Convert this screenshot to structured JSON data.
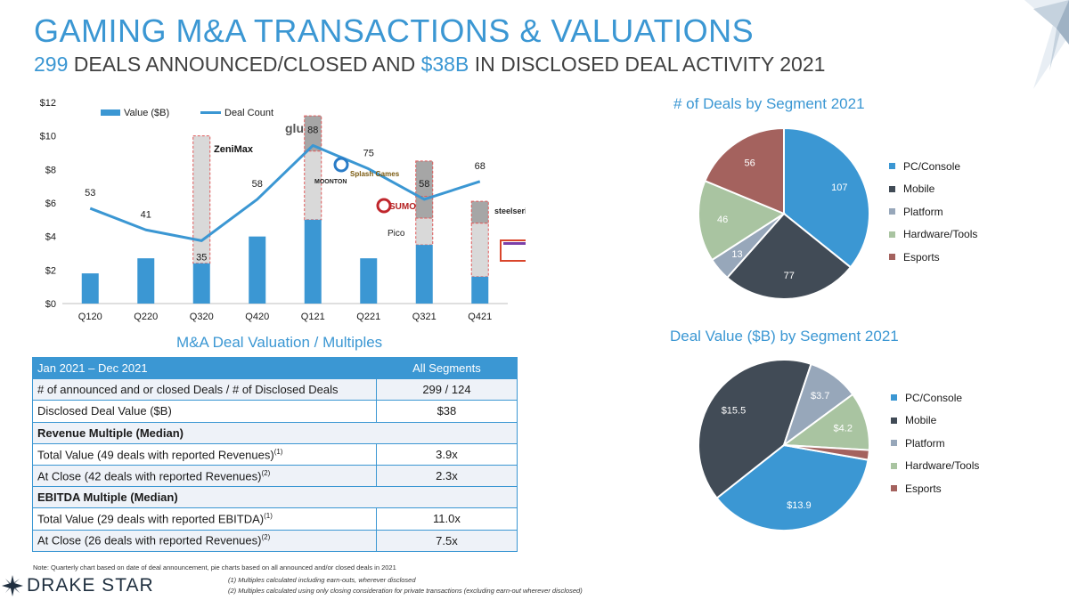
{
  "header": {
    "title": "GAMING M&A TRANSACTIONS & VALUATIONS",
    "subtitle_count": "299",
    "subtitle_mid": " DEALS ANNOUNCED/CLOSED AND ",
    "subtitle_value": "$38B",
    "subtitle_end": " IN DISCLOSED DEAL ACTIVITY 2021"
  },
  "colors": {
    "accent": "#3b97d3",
    "bar": "#3b97d3",
    "line": "#3b97d3",
    "highlight_box": "#d9d9d9",
    "highlight_box_dark": "#a6a6a6",
    "highlight_border": "#e05a5a",
    "pc_console": "#3b97d3",
    "mobile": "#414b56",
    "platform": "#97a7ba",
    "hardware_tools": "#a9c4a1",
    "esports": "#a4625e"
  },
  "chart_data": [
    {
      "type": "bar",
      "categories": [
        "Q120",
        "Q220",
        "Q320",
        "Q420",
        "Q121",
        "Q221",
        "Q321",
        "Q421"
      ],
      "ylim": [
        0,
        12
      ],
      "yticks": [
        "$0",
        "$2",
        "$4",
        "$6",
        "$8",
        "$10",
        "$12"
      ],
      "series": [
        {
          "name": "Value ($B)",
          "type": "bar",
          "values": [
            1.8,
            2.7,
            2.4,
            4.0,
            5.0,
            2.7,
            3.5,
            1.6
          ]
        },
        {
          "name": "Deal Count",
          "type": "line",
          "values": [
            53,
            41,
            35,
            58,
            88,
            75,
            58,
            68
          ],
          "ylim": [
            0,
            112
          ]
        }
      ],
      "highlighted_deals": [
        {
          "category": "Q320",
          "segments": [
            [
              2.4,
              10.0
            ]
          ]
        },
        {
          "category": "Q121",
          "segments": [
            [
              5.0,
              9.1
            ],
            [
              9.1,
              11.2
            ]
          ]
        },
        {
          "category": "Q321",
          "segments": [
            [
              3.5,
              5.1
            ],
            [
              5.1,
              6.4
            ],
            [
              6.4,
              8.5
            ]
          ]
        },
        {
          "category": "Q421",
          "segments": [
            [
              1.6,
              4.8
            ],
            [
              4.8,
              6.1
            ]
          ]
        }
      ],
      "logos": [
        "ZeniMax",
        "glu",
        "MOONTON",
        "Splash Games",
        "SUMO",
        "steelseries",
        "Pico"
      ]
    },
    {
      "type": "pie",
      "title": "# of Deals by Segment 2021",
      "labels": [
        "PC/Console",
        "Mobile",
        "Platform",
        "Hardware/Tools",
        "Esports"
      ],
      "values": [
        107,
        77,
        13,
        46,
        56
      ],
      "start_angle": 0,
      "legend_position": "right"
    },
    {
      "type": "pie",
      "title": "Deal Value ($B) by Segment 2021",
      "labels": [
        "PC/Console",
        "Mobile",
        "Platform",
        "Hardware/Tools",
        "Esports"
      ],
      "values": [
        13.9,
        15.5,
        3.7,
        4.2,
        0.7
      ],
      "value_labels": [
        "$13.9",
        "$15.5",
        "$3.7",
        "$4.2",
        ""
      ],
      "start_angle": 100,
      "legend_position": "right"
    }
  ],
  "valuation": {
    "title": "M&A Deal Valuation / Multiples",
    "header_label": "Jan 2021 – Dec 2021",
    "header_value": "All Segments",
    "rows": [
      {
        "label": "# of announced and or closed Deals / # of Disclosed Deals",
        "value": "299 / 124"
      },
      {
        "label": "Disclosed Deal Value ($B)",
        "value": "$38"
      }
    ],
    "revenue_heading": "Revenue Multiple (Median)",
    "revenue_rows": [
      {
        "label": "Total Value (49 deals with reported Revenues)",
        "sup": "(1)",
        "value": "3.9x"
      },
      {
        "label": "At Close (42 deals with reported Revenues)",
        "sup": "(2)",
        "value": "2.3x"
      }
    ],
    "ebitda_heading": "EBITDA Multiple (Median)",
    "ebitda_rows": [
      {
        "label": "Total Value (29 deals with reported EBITDA)",
        "sup": "(1)",
        "value": "11.0x"
      },
      {
        "label": "At Close (26 deals with reported Revenues)",
        "sup": "(2)",
        "value": "7.5x"
      }
    ]
  },
  "footer": {
    "note": "Note: Quarterly chart based on date of deal announcement, pie charts based on all announced and/or closed deals in 2021",
    "footnote1": "(1) Multiples calculated including earn-outs, wherever disclosed",
    "footnote2": "(2) Multiples calculated using only closing consideration for private transactions (excluding earn-out wherever disclosed)",
    "brand": "DRAKE STAR"
  }
}
